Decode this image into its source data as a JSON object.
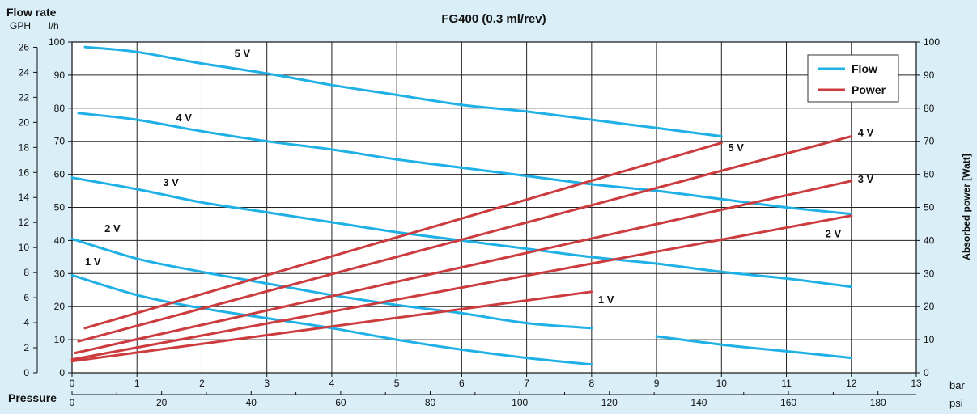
{
  "chart_data": {
    "type": "line",
    "title": "FG400 (0.3 ml/rev)",
    "x_axis": {
      "label": "Pressure",
      "unit_label": "bar",
      "ticks": [
        0,
        1,
        2,
        3,
        4,
        5,
        6,
        7,
        8,
        9,
        10,
        11,
        12,
        13
      ],
      "range": [
        0,
        13
      ]
    },
    "x_axis_psi": {
      "unit_label": "psi",
      "ticks": [
        0,
        20,
        40,
        60,
        80,
        100,
        120,
        140,
        160,
        180
      ]
    },
    "y_left": {
      "label_line1": "Flow rate",
      "gph_label": "GPH",
      "lh_label": "l/h",
      "lh_ticks": [
        0,
        10,
        20,
        30,
        40,
        50,
        60,
        70,
        80,
        90,
        100
      ],
      "range": [
        0,
        100
      ],
      "gph_ticks": [
        0,
        2,
        4,
        6,
        8,
        10,
        12,
        14,
        16,
        18,
        20,
        22,
        24,
        26
      ]
    },
    "y_right": {
      "label": "Absorbed power [Watt]",
      "ticks": [
        0,
        10,
        20,
        30,
        40,
        50,
        60,
        70,
        80,
        90,
        100
      ],
      "range": [
        0,
        100
      ]
    },
    "grid": true,
    "legend": {
      "position": "top-right",
      "items": [
        {
          "label": "Flow",
          "color": "#1fb0e6"
        },
        {
          "label": "Power",
          "color": "#cc3b3e"
        }
      ]
    },
    "colors": {
      "flow": "#1fb0e6",
      "power": "#cc3b3e"
    },
    "flow_series": [
      {
        "name": "5 V",
        "x": [
          0.2,
          1,
          2,
          3,
          4,
          5,
          6,
          7,
          8,
          9,
          10
        ],
        "y": [
          98.5,
          97,
          93.5,
          90.5,
          87,
          84,
          81,
          79,
          76.5,
          74,
          71.5
        ]
      },
      {
        "name": "4 V",
        "x": [
          0.1,
          1,
          2,
          3,
          4,
          5,
          6,
          7,
          8,
          9,
          10,
          11,
          12
        ],
        "y": [
          78.5,
          76.5,
          73,
          70,
          67.5,
          64.5,
          62,
          59.5,
          57,
          55,
          52.5,
          50,
          48
        ]
      },
      {
        "name": "3 V",
        "x": [
          0,
          1,
          2,
          3,
          4,
          5,
          6,
          7,
          8,
          9,
          10,
          11,
          12
        ],
        "y": [
          59,
          55.5,
          51.5,
          48.5,
          45.5,
          42.5,
          40,
          37.5,
          35,
          33,
          30.5,
          28.5,
          26
        ]
      },
      {
        "name": "2 V",
        "x": [
          0,
          1,
          2,
          3,
          4,
          5,
          6,
          7,
          8
        ],
        "y": [
          40.5,
          34.5,
          30.5,
          27,
          23.5,
          20.5,
          18,
          15,
          13.5
        ]
      },
      {
        "name": "1 V",
        "x": [
          0,
          1,
          2,
          3,
          4,
          5,
          6,
          7,
          8,
          9,
          10,
          11,
          12
        ],
        "y": [
          29.5,
          23.5,
          19.5,
          16.5,
          13.5,
          10,
          7,
          4.5,
          2.5,
          11,
          8.5,
          6.5,
          4.5
        ]
      }
    ],
    "power_series": [
      {
        "name": "5 V",
        "x": [
          0.2,
          10
        ],
        "y": [
          13.5,
          69.5
        ]
      },
      {
        "name": "4 V",
        "x": [
          0.1,
          12
        ],
        "y": [
          9.5,
          71.5
        ]
      },
      {
        "name": "3 V",
        "x": [
          0.05,
          12
        ],
        "y": [
          6,
          58
        ]
      },
      {
        "name": "2 V",
        "x": [
          0,
          12
        ],
        "y": [
          4,
          47.5
        ]
      },
      {
        "name": "1 V",
        "x": [
          0,
          8
        ],
        "y": [
          3.5,
          24.5
        ]
      }
    ],
    "annotations": [
      {
        "text": "5 V",
        "x": 2.5,
        "y": 95.5
      },
      {
        "text": "4 V",
        "x": 1.6,
        "y": 76
      },
      {
        "text": "3 V",
        "x": 1.4,
        "y": 56.5
      },
      {
        "text": "2 V",
        "x": 0.5,
        "y": 42.5
      },
      {
        "text": "1 V",
        "x": 0.2,
        "y": 32.5
      },
      {
        "text": "5 V",
        "x": 10.1,
        "y": 67
      },
      {
        "text": "4 V",
        "x": 12.1,
        "y": 71.5
      },
      {
        "text": "3 V",
        "x": 12.1,
        "y": 57.5
      },
      {
        "text": "2 V",
        "x": 11.6,
        "y": 41
      },
      {
        "text": "1 V",
        "x": 8.1,
        "y": 21
      }
    ]
  }
}
